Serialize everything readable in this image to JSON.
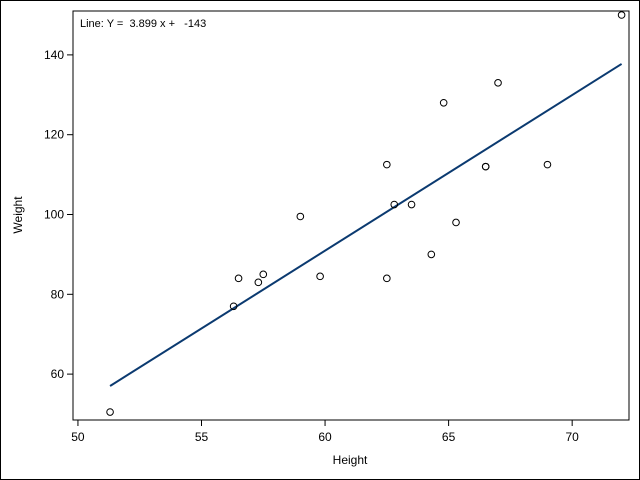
{
  "chart_data": {
    "type": "scatter",
    "title": "",
    "xlabel": "Height",
    "ylabel": "Weight",
    "xlim": [
      49.8,
      72.3
    ],
    "ylim": [
      48.5,
      151
    ],
    "xticks": [
      50,
      55,
      60,
      65,
      70
    ],
    "yticks": [
      60,
      80,
      100,
      120,
      140
    ],
    "grid": false,
    "annotation": "Line: Y =  3.899 x +   -143",
    "regression": {
      "slope": 3.899,
      "intercept": -143,
      "x_range": [
        51.3,
        72.0
      ]
    },
    "points": [
      {
        "x": 51.3,
        "y": 50.5
      },
      {
        "x": 56.3,
        "y": 77.0
      },
      {
        "x": 56.5,
        "y": 84.0
      },
      {
        "x": 57.3,
        "y": 83.0
      },
      {
        "x": 57.5,
        "y": 85.0
      },
      {
        "x": 59.0,
        "y": 99.5
      },
      {
        "x": 59.8,
        "y": 84.5
      },
      {
        "x": 62.5,
        "y": 112.5
      },
      {
        "x": 62.5,
        "y": 84.0
      },
      {
        "x": 62.8,
        "y": 102.5
      },
      {
        "x": 63.5,
        "y": 102.5
      },
      {
        "x": 64.3,
        "y": 90.0
      },
      {
        "x": 64.8,
        "y": 128.0
      },
      {
        "x": 65.3,
        "y": 98.0
      },
      {
        "x": 66.5,
        "y": 112.0
      },
      {
        "x": 66.5,
        "y": 112.0
      },
      {
        "x": 67.0,
        "y": 133.0
      },
      {
        "x": 69.0,
        "y": 112.5
      },
      {
        "x": 72.0,
        "y": 150.0
      }
    ],
    "colors": {
      "line": "#0b3a70",
      "marker": "#000000",
      "axis": "#000000"
    }
  }
}
